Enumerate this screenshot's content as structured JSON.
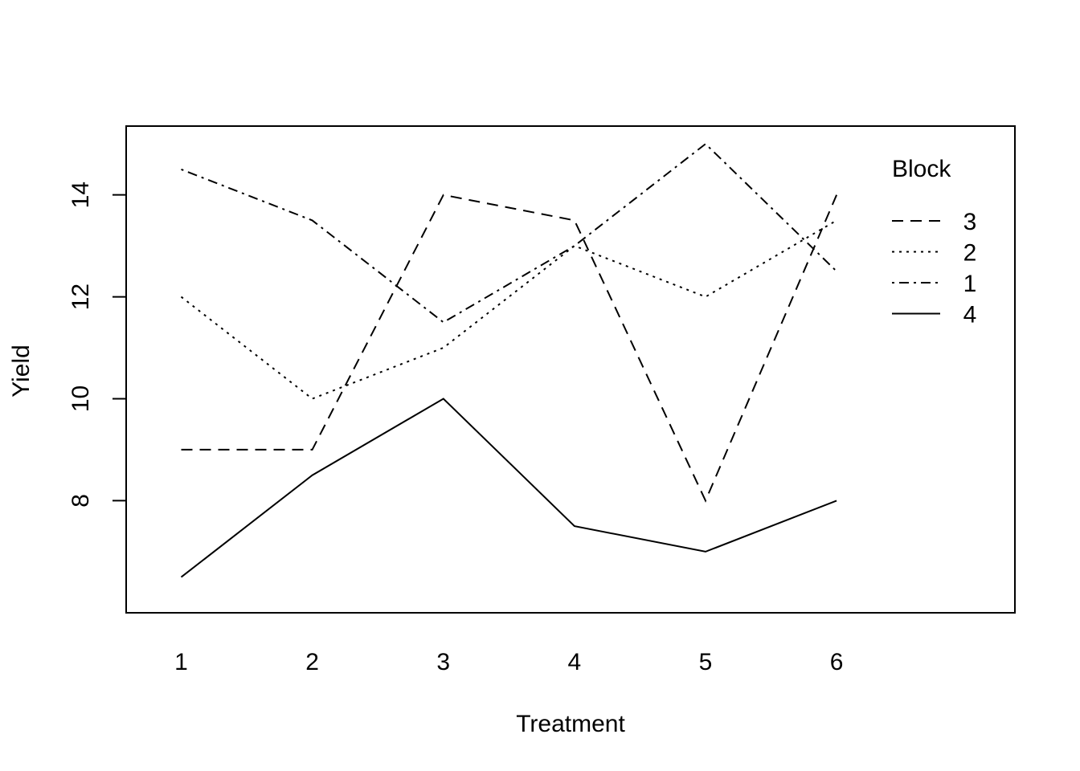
{
  "chart_data": {
    "type": "line",
    "title": "",
    "xlabel": "Treatment",
    "ylabel": "Yield",
    "x": [
      1,
      2,
      3,
      4,
      5,
      6
    ],
    "xlim": [
      0.58,
      7.36
    ],
    "ylim": [
      5.8,
      15.35
    ],
    "xticks": [
      "1",
      "2",
      "3",
      "4",
      "5",
      "6"
    ],
    "yticks": [
      8,
      10,
      12,
      14
    ],
    "grid": false,
    "legend": {
      "title": "Block",
      "placement": "top-right"
    },
    "series": [
      {
        "name": "3",
        "dash": "dashed",
        "values": [
          9,
          9,
          14,
          13.5,
          8,
          14
        ]
      },
      {
        "name": "2",
        "dash": "dotted",
        "values": [
          12,
          10,
          11,
          13,
          12,
          13.5
        ]
      },
      {
        "name": "1",
        "dash": "dotdash",
        "values": [
          14.5,
          13.5,
          11.5,
          13,
          15,
          12.5
        ]
      },
      {
        "name": "4",
        "dash": "solid",
        "values": [
          6.5,
          8.5,
          10,
          7.5,
          7,
          8
        ]
      }
    ]
  }
}
